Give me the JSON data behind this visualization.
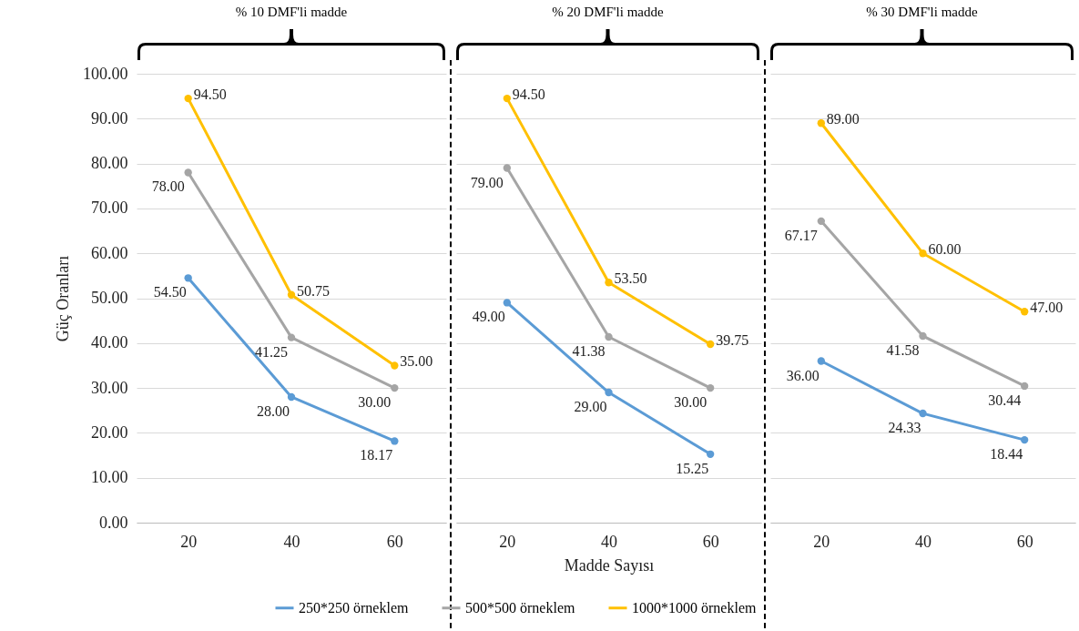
{
  "chart_data": [
    {
      "type": "line",
      "title": "% 10 DMF'li madde",
      "ylabel": "Güç Oranları",
      "categories": [
        "20",
        "40",
        "60"
      ],
      "ylim": [
        0,
        100
      ],
      "yticks": [
        {
          "value": 0,
          "label": "0.00"
        },
        {
          "value": 10,
          "label": "10.00"
        },
        {
          "value": 20,
          "label": "20.00"
        },
        {
          "value": 30,
          "label": "30.00"
        },
        {
          "value": 40,
          "label": "40.00"
        },
        {
          "value": 50,
          "label": "50.00"
        },
        {
          "value": 60,
          "label": "60.00"
        },
        {
          "value": 70,
          "label": "70.00"
        },
        {
          "value": 80,
          "label": "80.00"
        },
        {
          "value": 90,
          "label": "90.00"
        },
        {
          "value": 100,
          "label": "100.00"
        }
      ],
      "grid": "y",
      "marker": "circle",
      "series": [
        {
          "color": "#5b9bd5",
          "values": [
            54.5,
            28,
            18.17
          ],
          "value_labels": [
            "54.50",
            "28.00",
            "18.17"
          ]
        },
        {
          "color": "#a5a5a5",
          "values": [
            78,
            41.25,
            30
          ],
          "value_labels": [
            "78.00",
            "41.25",
            "30.00"
          ]
        },
        {
          "color": "#ffc000",
          "values": [
            94.5,
            50.75,
            35
          ],
          "value_labels": [
            "94.50",
            "50.75",
            "35.00"
          ]
        }
      ]
    },
    {
      "type": "line",
      "title": "% 20 DMF'li madde",
      "xlabel": "Madde Sayısı",
      "categories": [
        "20",
        "40",
        "60"
      ],
      "ylim": [
        0,
        100
      ],
      "yticks": [
        0,
        10,
        20,
        30,
        40,
        50,
        60,
        70,
        80,
        90,
        100
      ],
      "tick_labels": "x",
      "grid": "y",
      "marker": "circle",
      "legend": "bottom",
      "series": [
        {
          "name": "250*250 örneklem",
          "color": "#5b9bd5",
          "values": [
            49,
            29,
            15.25
          ],
          "value_labels": [
            "49.00",
            "29.00",
            "15.25"
          ]
        },
        {
          "name": "500*500 örneklem",
          "color": "#a5a5a5",
          "values": [
            79,
            41.38,
            30
          ],
          "value_labels": [
            "79.00",
            "41.38",
            "30.00"
          ]
        },
        {
          "name": "1000*1000 örneklem",
          "color": "#ffc000",
          "values": [
            94.5,
            53.5,
            39.75
          ],
          "value_labels": [
            "94.50",
            "53.50",
            "39.75"
          ]
        }
      ]
    },
    {
      "type": "line",
      "title": "% 30 DMF'li madde",
      "categories": [
        "20",
        "40",
        "60"
      ],
      "ylim": [
        0,
        100
      ],
      "yticks": [
        0,
        10,
        20,
        30,
        40,
        50,
        60,
        70,
        80,
        90,
        100
      ],
      "tick_labels": "x",
      "grid": "y",
      "marker": "circle",
      "series": [
        {
          "color": "#5b9bd5",
          "values": [
            36,
            24.33,
            18.44
          ],
          "value_labels": [
            "36.00",
            "24.33",
            "18.44"
          ]
        },
        {
          "color": "#a5a5a5",
          "values": [
            67.17,
            41.58,
            30.44
          ],
          "value_labels": [
            "67.17",
            "41.58",
            "30.44"
          ]
        },
        {
          "color": "#ffc000",
          "values": [
            89,
            60,
            47
          ],
          "value_labels": [
            "89.00",
            "60.00",
            "47.00"
          ]
        }
      ]
    }
  ]
}
